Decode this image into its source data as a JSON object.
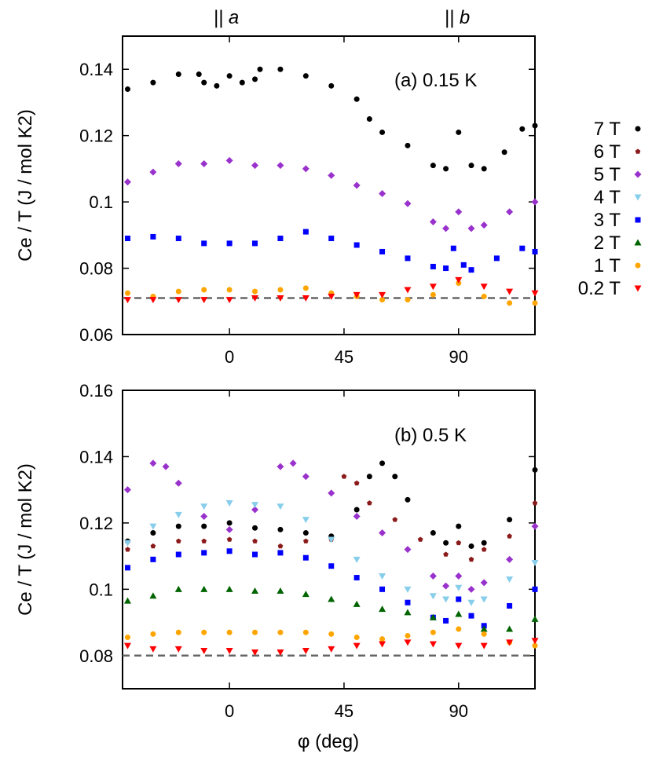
{
  "top_labels": {
    "a": "|| a",
    "b": "|| b"
  },
  "xlabel": "φ (deg)",
  "reference_line_color": "#666666",
  "legend": [
    {
      "label": "7 T",
      "color": "#000000",
      "marker": "circle"
    },
    {
      "label": "6 T",
      "color": "#8b1a1a",
      "marker": "pentagon"
    },
    {
      "label": "5 T",
      "color": "#9932cc",
      "marker": "diamond"
    },
    {
      "label": "4 T",
      "color": "#87ceeb",
      "marker": "triangle-down"
    },
    {
      "label": "3 T",
      "color": "#0000ff",
      "marker": "square"
    },
    {
      "label": "2 T",
      "color": "#006400",
      "marker": "triangle-up"
    },
    {
      "label": "1 T",
      "color": "#ffa500",
      "marker": "circle"
    },
    {
      "label": "0.2 T",
      "color": "#ff0000",
      "marker": "triangle-down"
    }
  ],
  "chart_data": [
    {
      "type": "scatter",
      "annotation": "(a) 0.15 K",
      "ylabel": "Ce / T (J / mol K2)",
      "xlim": [
        -42,
        120
      ],
      "ylim": [
        0.06,
        0.15
      ],
      "xticks": [
        0,
        45,
        90
      ],
      "yticks": [
        0.06,
        0.08,
        0.1,
        0.12,
        0.14
      ],
      "ytick_labels": [
        "0.06",
        "0.08",
        "0.1",
        "0.12",
        "0.14"
      ],
      "reference_y": 0.071,
      "series": [
        {
          "name": "7 T",
          "points": [
            [
              -40,
              0.134
            ],
            [
              -30,
              0.136
            ],
            [
              -20,
              0.1385
            ],
            [
              -12,
              0.1385
            ],
            [
              -10,
              0.136
            ],
            [
              -5,
              0.135
            ],
            [
              0,
              0.138
            ],
            [
              5,
              0.136
            ],
            [
              10,
              0.137
            ],
            [
              12,
              0.14
            ],
            [
              20,
              0.14
            ],
            [
              30,
              0.138
            ],
            [
              40,
              0.135
            ],
            [
              50,
              0.131
            ],
            [
              55,
              0.125
            ],
            [
              60,
              0.121
            ],
            [
              70,
              0.117
            ],
            [
              80,
              0.111
            ],
            [
              85,
              0.11
            ],
            [
              90,
              0.121
            ],
            [
              95,
              0.111
            ],
            [
              100,
              0.11
            ],
            [
              108,
              0.115
            ],
            [
              115,
              0.122
            ],
            [
              120,
              0.123
            ]
          ]
        },
        {
          "name": "5 T",
          "points": [
            [
              -40,
              0.106
            ],
            [
              -30,
              0.109
            ],
            [
              -20,
              0.1115
            ],
            [
              -10,
              0.1115
            ],
            [
              0,
              0.1125
            ],
            [
              10,
              0.111
            ],
            [
              20,
              0.111
            ],
            [
              30,
              0.11
            ],
            [
              40,
              0.108
            ],
            [
              50,
              0.105
            ],
            [
              60,
              0.1025
            ],
            [
              70,
              0.0995
            ],
            [
              80,
              0.094
            ],
            [
              85,
              0.092
            ],
            [
              90,
              0.097
            ],
            [
              95,
              0.092
            ],
            [
              100,
              0.093
            ],
            [
              110,
              0.097
            ],
            [
              120,
              0.1
            ]
          ]
        },
        {
          "name": "3 T",
          "points": [
            [
              -40,
              0.089
            ],
            [
              -30,
              0.0895
            ],
            [
              -20,
              0.089
            ],
            [
              -10,
              0.0875
            ],
            [
              0,
              0.0875
            ],
            [
              10,
              0.0875
            ],
            [
              20,
              0.089
            ],
            [
              30,
              0.091
            ],
            [
              40,
              0.089
            ],
            [
              50,
              0.087
            ],
            [
              60,
              0.085
            ],
            [
              70,
              0.083
            ],
            [
              80,
              0.0805
            ],
            [
              85,
              0.08
            ],
            [
              88,
              0.086
            ],
            [
              92,
              0.081
            ],
            [
              95,
              0.0795
            ],
            [
              105,
              0.083
            ],
            [
              115,
              0.086
            ],
            [
              120,
              0.085
            ]
          ]
        },
        {
          "name": "1 T",
          "points": [
            [
              -40,
              0.0725
            ],
            [
              -30,
              0.0715
            ],
            [
              -20,
              0.073
            ],
            [
              -10,
              0.0735
            ],
            [
              0,
              0.0735
            ],
            [
              10,
              0.073
            ],
            [
              20,
              0.0735
            ],
            [
              30,
              0.074
            ],
            [
              40,
              0.0725
            ],
            [
              50,
              0.0715
            ],
            [
              60,
              0.0705
            ],
            [
              70,
              0.0705
            ],
            [
              80,
              0.072
            ],
            [
              90,
              0.0755
            ],
            [
              100,
              0.0715
            ],
            [
              110,
              0.0695
            ],
            [
              120,
              0.0695
            ]
          ]
        },
        {
          "name": "0.2 T",
          "points": [
            [
              -40,
              0.0705
            ],
            [
              -30,
              0.0705
            ],
            [
              -20,
              0.0705
            ],
            [
              -10,
              0.0705
            ],
            [
              0,
              0.0705
            ],
            [
              10,
              0.071
            ],
            [
              20,
              0.071
            ],
            [
              30,
              0.071
            ],
            [
              40,
              0.0715
            ],
            [
              50,
              0.072
            ],
            [
              60,
              0.072
            ],
            [
              70,
              0.0735
            ],
            [
              80,
              0.0745
            ],
            [
              90,
              0.0765
            ],
            [
              100,
              0.0745
            ],
            [
              110,
              0.073
            ],
            [
              120,
              0.0725
            ]
          ]
        }
      ]
    },
    {
      "type": "scatter",
      "annotation": "(b) 0.5 K",
      "ylabel": "Ce / T (J / mol K2)",
      "xlim": [
        -42,
        120
      ],
      "ylim": [
        0.07,
        0.16
      ],
      "xticks": [
        0,
        45,
        90
      ],
      "yticks": [
        0.08,
        0.1,
        0.12,
        0.14,
        0.16
      ],
      "ytick_labels": [
        "0.08",
        "0.1",
        "0.12",
        "0.14",
        "0.16"
      ],
      "reference_y": 0.08,
      "series": [
        {
          "name": "7 T",
          "points": [
            [
              -40,
              0.1145
            ],
            [
              -30,
              0.117
            ],
            [
              -20,
              0.119
            ],
            [
              -10,
              0.119
            ],
            [
              0,
              0.12
            ],
            [
              10,
              0.1185
            ],
            [
              20,
              0.118
            ],
            [
              30,
              0.117
            ],
            [
              40,
              0.116
            ],
            [
              50,
              0.124
            ],
            [
              55,
              0.134
            ],
            [
              60,
              0.138
            ],
            [
              65,
              0.134
            ],
            [
              70,
              0.127
            ],
            [
              80,
              0.117
            ],
            [
              85,
              0.114
            ],
            [
              90,
              0.119
            ],
            [
              95,
              0.113
            ],
            [
              100,
              0.114
            ],
            [
              110,
              0.121
            ],
            [
              120,
              0.136
            ]
          ]
        },
        {
          "name": "6 T",
          "points": [
            [
              -40,
              0.112
            ],
            [
              -30,
              0.113
            ],
            [
              -20,
              0.1145
            ],
            [
              -10,
              0.1145
            ],
            [
              0,
              0.115
            ],
            [
              10,
              0.1145
            ],
            [
              20,
              0.113
            ],
            [
              30,
              0.1145
            ],
            [
              40,
              0.115
            ],
            [
              45,
              0.134
            ],
            [
              50,
              0.132
            ],
            [
              55,
              0.126
            ],
            [
              65,
              0.121
            ],
            [
              75,
              0.115
            ],
            [
              85,
              0.1105
            ],
            [
              90,
              0.114
            ],
            [
              95,
              0.109
            ],
            [
              100,
              0.112
            ],
            [
              110,
              0.116
            ],
            [
              120,
              0.126
            ]
          ]
        },
        {
          "name": "5 T",
          "points": [
            [
              -40,
              0.13
            ],
            [
              -30,
              0.138
            ],
            [
              -25,
              0.137
            ],
            [
              -20,
              0.132
            ],
            [
              -10,
              0.122
            ],
            [
              0,
              0.118
            ],
            [
              10,
              0.124
            ],
            [
              20,
              0.137
            ],
            [
              25,
              0.138
            ],
            [
              30,
              0.134
            ],
            [
              40,
              0.129
            ],
            [
              50,
              0.122
            ],
            [
              60,
              0.117
            ],
            [
              70,
              0.112
            ],
            [
              80,
              0.104
            ],
            [
              85,
              0.101
            ],
            [
              90,
              0.104
            ],
            [
              95,
              0.1
            ],
            [
              100,
              0.102
            ],
            [
              110,
              0.109
            ],
            [
              120,
              0.119
            ]
          ]
        },
        {
          "name": "4 T",
          "points": [
            [
              -40,
              0.114
            ],
            [
              -30,
              0.119
            ],
            [
              -20,
              0.1225
            ],
            [
              -10,
              0.125
            ],
            [
              0,
              0.126
            ],
            [
              10,
              0.1255
            ],
            [
              20,
              0.125
            ],
            [
              30,
              0.121
            ],
            [
              40,
              0.115
            ],
            [
              50,
              0.109
            ],
            [
              60,
              0.104
            ],
            [
              70,
              0.1
            ],
            [
              80,
              0.098
            ],
            [
              85,
              0.097
            ],
            [
              90,
              0.1005
            ],
            [
              95,
              0.096
            ],
            [
              100,
              0.097
            ],
            [
              110,
              0.103
            ],
            [
              120,
              0.108
            ]
          ]
        },
        {
          "name": "3 T",
          "points": [
            [
              -40,
              0.1065
            ],
            [
              -30,
              0.109
            ],
            [
              -20,
              0.1105
            ],
            [
              -10,
              0.111
            ],
            [
              0,
              0.1115
            ],
            [
              10,
              0.1105
            ],
            [
              20,
              0.111
            ],
            [
              30,
              0.1095
            ],
            [
              40,
              0.107
            ],
            [
              50,
              0.1035
            ],
            [
              60,
              0.1
            ],
            [
              70,
              0.096
            ],
            [
              80,
              0.0915
            ],
            [
              85,
              0.0905
            ],
            [
              90,
              0.097
            ],
            [
              95,
              0.092
            ],
            [
              100,
              0.089
            ],
            [
              110,
              0.095
            ],
            [
              120,
              0.1
            ]
          ]
        },
        {
          "name": "2 T",
          "points": [
            [
              -40,
              0.0965
            ],
            [
              -30,
              0.098
            ],
            [
              -20,
              0.1
            ],
            [
              -10,
              0.1
            ],
            [
              0,
              0.1
            ],
            [
              10,
              0.0995
            ],
            [
              20,
              0.0995
            ],
            [
              30,
              0.0985
            ],
            [
              40,
              0.097
            ],
            [
              50,
              0.0955
            ],
            [
              60,
              0.094
            ],
            [
              70,
              0.093
            ],
            [
              80,
              0.0915
            ],
            [
              90,
              0.0925
            ],
            [
              100,
              0.088
            ],
            [
              110,
              0.088
            ],
            [
              120,
              0.091
            ]
          ]
        },
        {
          "name": "1 T",
          "points": [
            [
              -40,
              0.0855
            ],
            [
              -30,
              0.0865
            ],
            [
              -20,
              0.087
            ],
            [
              -10,
              0.087
            ],
            [
              0,
              0.087
            ],
            [
              10,
              0.087
            ],
            [
              20,
              0.087
            ],
            [
              30,
              0.087
            ],
            [
              40,
              0.0865
            ],
            [
              50,
              0.0855
            ],
            [
              60,
              0.085
            ],
            [
              70,
              0.086
            ],
            [
              80,
              0.087
            ],
            [
              90,
              0.088
            ],
            [
              100,
              0.0865
            ],
            [
              110,
              0.084
            ],
            [
              120,
              0.083
            ]
          ]
        },
        {
          "name": "0.2 T",
          "points": [
            [
              -40,
              0.083
            ],
            [
              -30,
              0.082
            ],
            [
              -20,
              0.082
            ],
            [
              -10,
              0.0815
            ],
            [
              0,
              0.0815
            ],
            [
              10,
              0.081
            ],
            [
              20,
              0.081
            ],
            [
              30,
              0.0815
            ],
            [
              40,
              0.082
            ],
            [
              50,
              0.083
            ],
            [
              60,
              0.0835
            ],
            [
              70,
              0.084
            ],
            [
              80,
              0.0835
            ],
            [
              90,
              0.083
            ],
            [
              100,
              0.083
            ],
            [
              110,
              0.084
            ],
            [
              120,
              0.0845
            ]
          ]
        }
      ]
    }
  ]
}
